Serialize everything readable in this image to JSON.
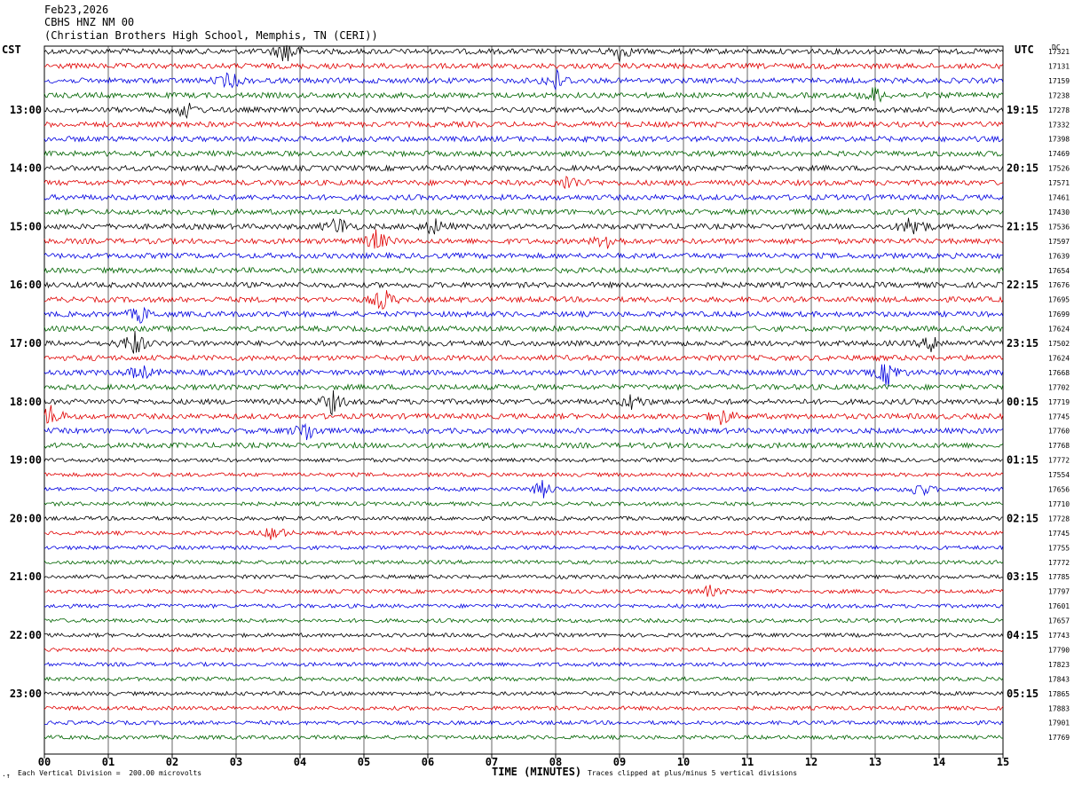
{
  "header": {
    "date": "Feb23,2026",
    "station": "CBHS HNZ NM 00",
    "location": "(Christian Brothers High School, Memphis, TN (CERI))"
  },
  "left_timezone": "CST",
  "right_timezone": "UTC",
  "dc_label": "DC",
  "footer": {
    "scale_note": "Each Vertical Division =  200.00 microvolts",
    "clip_note": "Traces clipped at plus/minus 5 vertical divisions",
    "icon_glyph": "·↑"
  },
  "colors": {
    "trace_cycle": [
      "#000000",
      "#e00000",
      "#0000e0",
      "#006400"
    ],
    "grid": "#000000"
  },
  "chart_data": {
    "type": "line",
    "xlabel": "TIME (MINUTES)",
    "xlim": [
      0,
      15
    ],
    "x_ticks": [
      "00",
      "01",
      "02",
      "03",
      "04",
      "05",
      "06",
      "07",
      "08",
      "09",
      "10",
      "11",
      "12",
      "13",
      "14",
      "15"
    ],
    "left_hour_labels": [
      "13:00",
      "14:00",
      "15:00",
      "16:00",
      "17:00",
      "18:00",
      "19:00",
      "20:00",
      "21:00",
      "22:00",
      "23:00"
    ],
    "right_hour_labels": [
      "19:15",
      "20:15",
      "21:15",
      "22:15",
      "23:15",
      "00:15",
      "01:15",
      "02:15",
      "03:15",
      "04:15",
      "05:15"
    ],
    "dc_offsets": [
      17321,
      17131,
      17159,
      17238,
      17278,
      17332,
      17398,
      17469,
      17526,
      17571,
      17461,
      17430,
      17536,
      17597,
      17639,
      17654,
      17676,
      17695,
      17699,
      17624,
      17502,
      17624,
      17668,
      17702,
      17719,
      17745,
      17760,
      17768,
      17772,
      17554,
      17656,
      17710,
      17728,
      17745,
      17755,
      17772,
      17785,
      17797,
      17601,
      17657,
      17743,
      17790,
      17823,
      17843,
      17865,
      17883,
      17901,
      17769
    ],
    "trace_count": 48,
    "trace_interval_minutes": 15,
    "amplitude_unit": "microvolts per vertical division",
    "amplitude_per_division": 200.0,
    "events": [
      {
        "trace": 0,
        "minute": 3.8,
        "amp": 5
      },
      {
        "trace": 0,
        "minute": 9.0,
        "amp": 3
      },
      {
        "trace": 2,
        "minute": 2.9,
        "amp": 3
      },
      {
        "trace": 2,
        "minute": 8.0,
        "amp": 4
      },
      {
        "trace": 3,
        "minute": 13.0,
        "amp": 3
      },
      {
        "trace": 4,
        "minute": 2.2,
        "amp": 3
      },
      {
        "trace": 9,
        "minute": 8.2,
        "amp": 3
      },
      {
        "trace": 12,
        "minute": 4.6,
        "amp": 4
      },
      {
        "trace": 12,
        "minute": 13.6,
        "amp": 5
      },
      {
        "trace": 12,
        "minute": 6.1,
        "amp": 3
      },
      {
        "trace": 13,
        "minute": 5.2,
        "amp": 4
      },
      {
        "trace": 13,
        "minute": 8.8,
        "amp": 3
      },
      {
        "trace": 17,
        "minute": 5.3,
        "amp": 4
      },
      {
        "trace": 18,
        "minute": 1.5,
        "amp": 3
      },
      {
        "trace": 20,
        "minute": 1.4,
        "amp": 5
      },
      {
        "trace": 20,
        "minute": 13.9,
        "amp": 3
      },
      {
        "trace": 22,
        "minute": 13.2,
        "amp": 5
      },
      {
        "trace": 22,
        "minute": 1.5,
        "amp": 3
      },
      {
        "trace": 24,
        "minute": 4.5,
        "amp": 4
      },
      {
        "trace": 24,
        "minute": 9.2,
        "amp": 3
      },
      {
        "trace": 25,
        "minute": 0.1,
        "amp": 4
      },
      {
        "trace": 25,
        "minute": 10.6,
        "amp": 3
      },
      {
        "trace": 26,
        "minute": 4.1,
        "amp": 4
      },
      {
        "trace": 30,
        "minute": 7.8,
        "amp": 3
      },
      {
        "trace": 30,
        "minute": 13.7,
        "amp": 3
      },
      {
        "trace": 33,
        "minute": 3.6,
        "amp": 3
      },
      {
        "trace": 37,
        "minute": 10.4,
        "amp": 2
      }
    ]
  }
}
